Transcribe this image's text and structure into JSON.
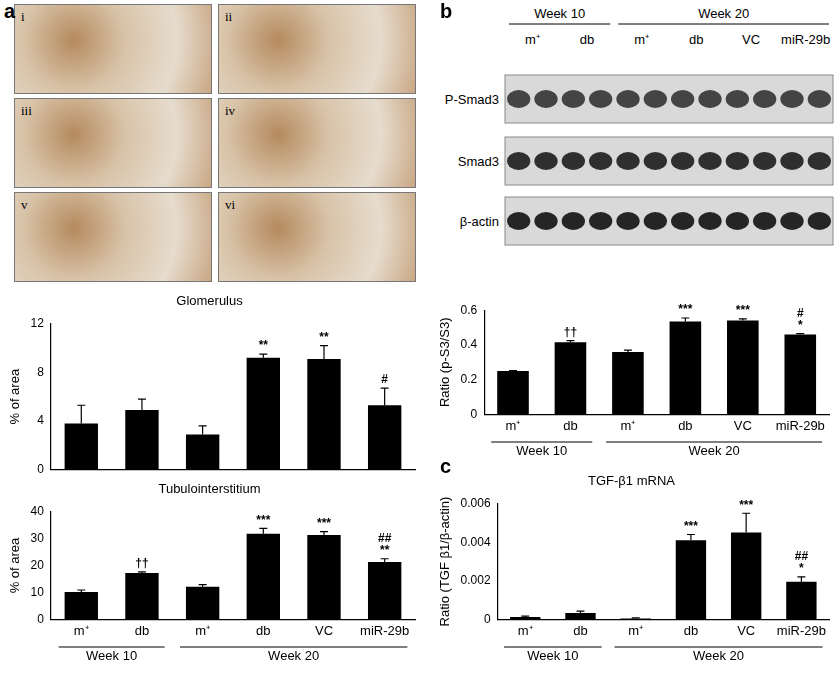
{
  "panel_labels": [
    "a",
    "b",
    "c"
  ],
  "micrographs": [
    "i",
    "ii",
    "iii",
    "iv",
    "v",
    "vi"
  ],
  "blot": {
    "x_groups": [
      {
        "label": "Week 10",
        "count": 2
      },
      {
        "label": "Week 20",
        "count": 4
      }
    ],
    "lanes": [
      "m⁺",
      "db",
      "m⁺",
      "db",
      "VC",
      "miR-29b"
    ],
    "rows": [
      "P-Smad3",
      "Smad3",
      "β-actin"
    ]
  },
  "chart_data": [
    {
      "type": "bar",
      "title": "Glomerulus",
      "y_label": "% of area",
      "categories": [
        "m⁺",
        "db",
        "m⁺",
        "db",
        "VC",
        "miR-29b"
      ],
      "values": [
        3.8,
        4.9,
        2.9,
        9.2,
        9.1,
        5.3
      ],
      "errors": [
        1.5,
        0.9,
        0.7,
        0.3,
        1.1,
        1.4
      ],
      "annotations": [
        null,
        null,
        null,
        "**",
        "**",
        "#"
      ],
      "color": "#000000",
      "ylim": [
        0,
        12
      ],
      "yticks": [
        0,
        4,
        8,
        12
      ],
      "grid": false,
      "tick_labels": "y"
    },
    {
      "type": "bar",
      "title": "Tubulointerstitium",
      "y_label": "% of area",
      "categories": [
        "m⁺",
        "db",
        "m⁺",
        "db",
        "VC",
        "miR-29b"
      ],
      "x_groups": [
        {
          "label": "Week 10",
          "count": 2
        },
        {
          "label": "Week 20",
          "count": 4
        }
      ],
      "values": [
        10.2,
        17.2,
        12.1,
        31.8,
        31.3,
        21.3
      ],
      "errors": [
        0.7,
        0.4,
        0.8,
        2.0,
        1.3,
        1.2
      ],
      "annotations": [
        null,
        "††",
        null,
        "***",
        "***",
        [
          "##",
          "**"
        ]
      ],
      "color": "#000000",
      "ylim": [
        0,
        40
      ],
      "yticks": [
        0,
        10,
        20,
        30,
        40
      ],
      "grid": false
    },
    {
      "type": "bar",
      "y_label": "Ratio (p-S3/S3)",
      "categories": [
        "m⁺",
        "db",
        "m⁺",
        "db",
        "VC",
        "miR-29b"
      ],
      "x_groups": [
        {
          "label": "Week 10",
          "count": 2
        },
        {
          "label": "Week 20",
          "count": 4
        }
      ],
      "values": [
        0.25,
        0.415,
        0.36,
        0.535,
        0.54,
        0.46
      ],
      "errors": [
        0.002,
        0.01,
        0.01,
        0.02,
        0.01,
        0.005
      ],
      "annotations": [
        null,
        "††",
        null,
        "***",
        "***",
        [
          "#",
          "*"
        ]
      ],
      "color": "#000000",
      "ylim": [
        0,
        0.6
      ],
      "yticks": [
        0,
        0.2,
        0.4,
        0.6
      ],
      "grid": false
    },
    {
      "type": "bar",
      "title": "TGF-β1 mRNA",
      "y_label": "Ratio (TGF β1/β-actin)",
      "categories": [
        "m⁺",
        "db",
        "m⁺",
        "db",
        "VC",
        "miR-29b"
      ],
      "x_groups": [
        {
          "label": "Week 10",
          "count": 2
        },
        {
          "label": "Week 20",
          "count": 4
        }
      ],
      "values": [
        0.00012,
        0.00033,
        5e-05,
        0.0041,
        0.0045,
        0.00195
      ],
      "errors": [
        5e-05,
        0.0001,
        3e-05,
        0.0003,
        0.001,
        0.00025
      ],
      "annotations": [
        null,
        null,
        null,
        "***",
        "***",
        [
          "##",
          "*"
        ]
      ],
      "color": "#000000",
      "ylim": [
        0,
        0.006
      ],
      "yticks": [
        0,
        0.002,
        0.004,
        0.006
      ],
      "grid": false
    }
  ]
}
